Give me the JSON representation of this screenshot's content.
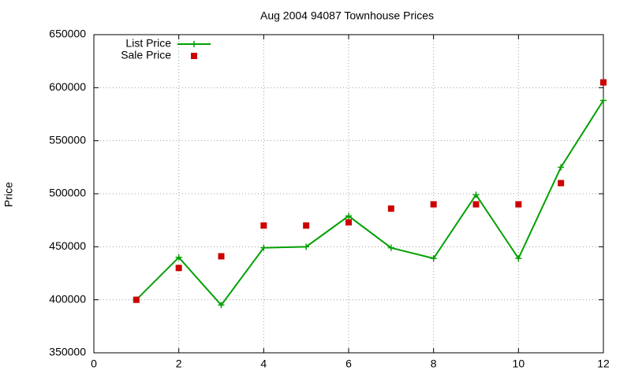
{
  "chart_data": {
    "type": "line",
    "title": "Aug 2004 94087 Townhouse Prices",
    "y_label": "Price",
    "x": [
      1,
      2,
      3,
      4,
      5,
      6,
      7,
      8,
      9,
      10,
      11,
      12
    ],
    "series": [
      {
        "name": "List Price",
        "color": "#00a000",
        "style": "linespoints",
        "marker": "plus",
        "values": [
          400000,
          440000,
          395000,
          449000,
          450000,
          479000,
          449000,
          439000,
          499000,
          439000,
          525000,
          588000
        ]
      },
      {
        "name": "Sale Price",
        "color": "#cc0000",
        "style": "points",
        "marker": "square",
        "values": [
          400000,
          430000,
          441000,
          470000,
          470000,
          473000,
          486000,
          490000,
          490000,
          490000,
          510000,
          605000
        ]
      }
    ],
    "xlim": [
      0,
      12
    ],
    "xticks": [
      0,
      2,
      4,
      6,
      8,
      10,
      12
    ],
    "ylim": [
      350000,
      650000
    ],
    "yticks": [
      350000,
      400000,
      450000,
      500000,
      550000,
      600000,
      650000
    ],
    "grid": true,
    "legend": "top-left"
  }
}
